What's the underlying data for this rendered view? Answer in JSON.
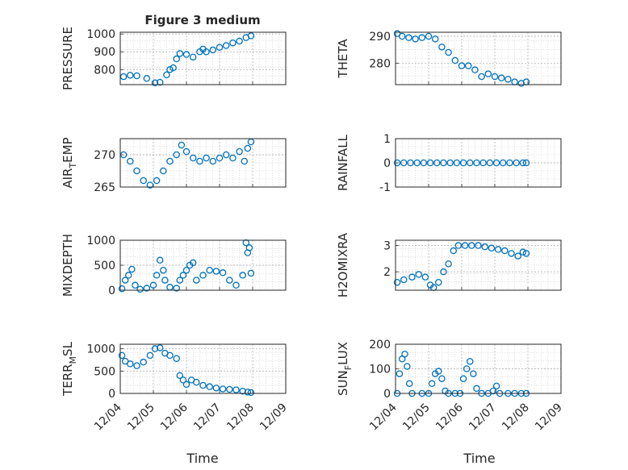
{
  "figure": {
    "title": "Figure 3 medium",
    "xlabel": "Time",
    "marker_color": "#0072BD",
    "grid_color": "#c8c8c8"
  },
  "chart_data": [
    {
      "type": "scatter",
      "ylabel": "PRESSURE",
      "ylabel_sub": "",
      "ylabel_rest": "",
      "ylim": [
        715,
        1010
      ],
      "yticks": [
        800,
        900,
        1000
      ],
      "ytick_labels": [
        "800",
        "900",
        "1000"
      ],
      "xlim": [
        "12/04",
        "12/09"
      ],
      "x_ticklabels_shown": false,
      "grid": true,
      "points": [
        [
          0.1,
          760
        ],
        [
          0.3,
          768
        ],
        [
          0.5,
          765
        ],
        [
          0.8,
          750
        ],
        [
          1.05,
          725
        ],
        [
          1.2,
          728
        ],
        [
          1.4,
          770
        ],
        [
          1.5,
          800
        ],
        [
          1.6,
          810
        ],
        [
          1.7,
          860
        ],
        [
          1.8,
          890
        ],
        [
          2.0,
          885
        ],
        [
          2.2,
          870
        ],
        [
          2.4,
          900
        ],
        [
          2.5,
          915
        ],
        [
          2.6,
          900
        ],
        [
          2.8,
          910
        ],
        [
          3.0,
          925
        ],
        [
          3.2,
          935
        ],
        [
          3.4,
          950
        ],
        [
          3.6,
          960
        ],
        [
          3.8,
          980
        ],
        [
          3.95,
          990
        ]
      ]
    },
    {
      "type": "scatter",
      "ylabel": "THETA",
      "ylabel_sub": "",
      "ylabel_rest": "",
      "ylim": [
        272,
        291.5
      ],
      "yticks": [
        280,
        290
      ],
      "ytick_labels": [
        "280",
        "290"
      ],
      "xlim": [
        "12/04",
        "12/09"
      ],
      "x_ticklabels_shown": false,
      "grid": true,
      "points": [
        [
          0.05,
          291
        ],
        [
          0.2,
          290
        ],
        [
          0.4,
          289.5
        ],
        [
          0.6,
          289
        ],
        [
          0.8,
          289.5
        ],
        [
          1.0,
          290
        ],
        [
          1.2,
          289
        ],
        [
          1.4,
          286
        ],
        [
          1.6,
          284
        ],
        [
          1.8,
          281
        ],
        [
          2.0,
          279
        ],
        [
          2.2,
          279
        ],
        [
          2.4,
          277.5
        ],
        [
          2.6,
          275
        ],
        [
          2.8,
          276
        ],
        [
          3.0,
          275
        ],
        [
          3.2,
          274.5
        ],
        [
          3.4,
          274
        ],
        [
          3.6,
          273
        ],
        [
          3.8,
          272.5
        ],
        [
          3.95,
          273
        ]
      ]
    },
    {
      "type": "scatter",
      "ylabel": "AIR",
      "ylabel_sub": "T",
      "ylabel_rest": "EMP",
      "ylim": [
        265,
        272.5
      ],
      "yticks": [
        265,
        270
      ],
      "ytick_labels": [
        "265",
        "270"
      ],
      "xlim": [
        "12/04",
        "12/09"
      ],
      "x_ticklabels_shown": false,
      "grid": true,
      "points": [
        [
          0.1,
          270
        ],
        [
          0.3,
          269
        ],
        [
          0.5,
          267.5
        ],
        [
          0.7,
          266
        ],
        [
          0.9,
          265.3
        ],
        [
          1.1,
          266
        ],
        [
          1.3,
          267.5
        ],
        [
          1.5,
          269
        ],
        [
          1.7,
          270
        ],
        [
          1.85,
          271.5
        ],
        [
          2.0,
          270.5
        ],
        [
          2.2,
          269.5
        ],
        [
          2.4,
          269
        ],
        [
          2.6,
          269.5
        ],
        [
          2.8,
          269
        ],
        [
          3.0,
          269.5
        ],
        [
          3.2,
          270
        ],
        [
          3.4,
          269.5
        ],
        [
          3.6,
          270.5
        ],
        [
          3.75,
          269
        ],
        [
          3.85,
          271
        ],
        [
          3.95,
          272
        ]
      ]
    },
    {
      "type": "scatter",
      "ylabel": "RAINFALL",
      "ylabel_sub": "",
      "ylabel_rest": "",
      "ylim": [
        -1,
        1
      ],
      "yticks": [
        -1,
        0,
        1
      ],
      "ytick_labels": [
        "-1",
        "0",
        "1"
      ],
      "xlim": [
        "12/04",
        "12/09"
      ],
      "x_ticklabels_shown": false,
      "grid": true,
      "points": [
        [
          0.05,
          0
        ],
        [
          0.25,
          0
        ],
        [
          0.45,
          0
        ],
        [
          0.65,
          0
        ],
        [
          0.85,
          0
        ],
        [
          1.05,
          0
        ],
        [
          1.25,
          0
        ],
        [
          1.45,
          0
        ],
        [
          1.65,
          0
        ],
        [
          1.85,
          0
        ],
        [
          2.05,
          0
        ],
        [
          2.25,
          0
        ],
        [
          2.45,
          0
        ],
        [
          2.65,
          0
        ],
        [
          2.85,
          0
        ],
        [
          3.05,
          0
        ],
        [
          3.25,
          0
        ],
        [
          3.45,
          0
        ],
        [
          3.65,
          0
        ],
        [
          3.85,
          0
        ],
        [
          3.95,
          0
        ]
      ]
    },
    {
      "type": "scatter",
      "ylabel": "MIXDEPTH",
      "ylabel_sub": "",
      "ylabel_rest": "",
      "ylim": [
        0,
        1000
      ],
      "yticks": [
        0,
        500,
        1000
      ],
      "ytick_labels": [
        "0",
        "500",
        "1000"
      ],
      "xlim": [
        "12/04",
        "12/09"
      ],
      "x_ticklabels_shown": false,
      "grid": true,
      "points": [
        [
          0.05,
          30
        ],
        [
          0.15,
          200
        ],
        [
          0.25,
          300
        ],
        [
          0.35,
          420
        ],
        [
          0.45,
          100
        ],
        [
          0.6,
          20
        ],
        [
          0.8,
          40
        ],
        [
          1.0,
          100
        ],
        [
          1.1,
          300
        ],
        [
          1.2,
          600
        ],
        [
          1.3,
          400
        ],
        [
          1.35,
          200
        ],
        [
          1.5,
          60
        ],
        [
          1.7,
          40
        ],
        [
          1.8,
          200
        ],
        [
          1.9,
          300
        ],
        [
          2.0,
          400
        ],
        [
          2.1,
          500
        ],
        [
          2.2,
          550
        ],
        [
          2.3,
          200
        ],
        [
          2.5,
          300
        ],
        [
          2.7,
          400
        ],
        [
          2.9,
          380
        ],
        [
          3.1,
          350
        ],
        [
          3.3,
          200
        ],
        [
          3.5,
          100
        ],
        [
          3.7,
          300
        ],
        [
          3.8,
          950
        ],
        [
          3.85,
          750
        ],
        [
          3.9,
          850
        ],
        [
          3.95,
          340
        ]
      ]
    },
    {
      "type": "scatter",
      "ylabel": "H2OMIXRA",
      "ylabel_sub": "",
      "ylabel_rest": "",
      "ylim": [
        1.3,
        3.2
      ],
      "yticks": [
        2,
        3
      ],
      "ytick_labels": [
        "2",
        "3"
      ],
      "xlim": [
        "12/04",
        "12/09"
      ],
      "x_ticklabels_shown": false,
      "grid": true,
      "points": [
        [
          0.05,
          1.6
        ],
        [
          0.25,
          1.7
        ],
        [
          0.5,
          1.8
        ],
        [
          0.7,
          1.9
        ],
        [
          0.9,
          1.8
        ],
        [
          1.05,
          1.5
        ],
        [
          1.15,
          1.4
        ],
        [
          1.3,
          1.6
        ],
        [
          1.45,
          2.0
        ],
        [
          1.6,
          2.3
        ],
        [
          1.75,
          2.8
        ],
        [
          1.9,
          3.0
        ],
        [
          2.1,
          3.0
        ],
        [
          2.3,
          3.0
        ],
        [
          2.5,
          3.0
        ],
        [
          2.7,
          2.95
        ],
        [
          2.9,
          2.9
        ],
        [
          3.1,
          2.85
        ],
        [
          3.3,
          2.8
        ],
        [
          3.5,
          2.7
        ],
        [
          3.7,
          2.6
        ],
        [
          3.85,
          2.75
        ],
        [
          3.95,
          2.7
        ]
      ]
    },
    {
      "type": "scatter",
      "ylabel": "TERR",
      "ylabel_sub": "M",
      "ylabel_rest": "SL",
      "ylim": [
        0,
        1100
      ],
      "yticks": [
        0,
        500,
        1000
      ],
      "ytick_labels": [
        "0",
        "500",
        "1000"
      ],
      "xlim": [
        "12/04",
        "12/09"
      ],
      "x_ticklabels_shown": true,
      "xticks": [
        "12/04",
        "12/05",
        "12/06",
        "12/07",
        "12/08",
        "12/09"
      ],
      "grid": true,
      "points": [
        [
          0.05,
          850
        ],
        [
          0.15,
          720
        ],
        [
          0.3,
          660
        ],
        [
          0.5,
          620
        ],
        [
          0.7,
          700
        ],
        [
          0.9,
          850
        ],
        [
          1.05,
          1000
        ],
        [
          1.2,
          1020
        ],
        [
          1.35,
          900
        ],
        [
          1.5,
          850
        ],
        [
          1.7,
          780
        ],
        [
          1.8,
          400
        ],
        [
          1.9,
          300
        ],
        [
          2.0,
          200
        ],
        [
          2.15,
          300
        ],
        [
          2.3,
          250
        ],
        [
          2.5,
          180
        ],
        [
          2.7,
          150
        ],
        [
          2.9,
          120
        ],
        [
          3.1,
          100
        ],
        [
          3.3,
          90
        ],
        [
          3.5,
          80
        ],
        [
          3.7,
          50
        ],
        [
          3.85,
          30
        ],
        [
          3.95,
          20
        ]
      ]
    },
    {
      "type": "scatter",
      "ylabel": "SUN",
      "ylabel_sub": "F",
      "ylabel_rest": "LUX",
      "ylim": [
        0,
        200
      ],
      "yticks": [
        0,
        100,
        200
      ],
      "ytick_labels": [
        "0",
        "100",
        "200"
      ],
      "xlim": [
        "12/04",
        "12/09"
      ],
      "x_ticklabels_shown": true,
      "xticks": [
        "12/04",
        "12/05",
        "12/06",
        "12/07",
        "12/08",
        "12/09"
      ],
      "grid": true,
      "points": [
        [
          0.05,
          0
        ],
        [
          0.12,
          80
        ],
        [
          0.2,
          140
        ],
        [
          0.28,
          160
        ],
        [
          0.35,
          110
        ],
        [
          0.42,
          40
        ],
        [
          0.5,
          0
        ],
        [
          0.8,
          0
        ],
        [
          1.0,
          0
        ],
        [
          1.1,
          40
        ],
        [
          1.2,
          80
        ],
        [
          1.3,
          90
        ],
        [
          1.4,
          60
        ],
        [
          1.5,
          10
        ],
        [
          1.6,
          0
        ],
        [
          1.8,
          0
        ],
        [
          1.95,
          0
        ],
        [
          2.05,
          60
        ],
        [
          2.15,
          100
        ],
        [
          2.25,
          130
        ],
        [
          2.35,
          80
        ],
        [
          2.45,
          20
        ],
        [
          2.6,
          0
        ],
        [
          2.8,
          0
        ],
        [
          2.95,
          10
        ],
        [
          3.05,
          30
        ],
        [
          3.15,
          0
        ],
        [
          3.4,
          0
        ],
        [
          3.6,
          0
        ],
        [
          3.8,
          0
        ],
        [
          3.95,
          0
        ]
      ]
    }
  ]
}
